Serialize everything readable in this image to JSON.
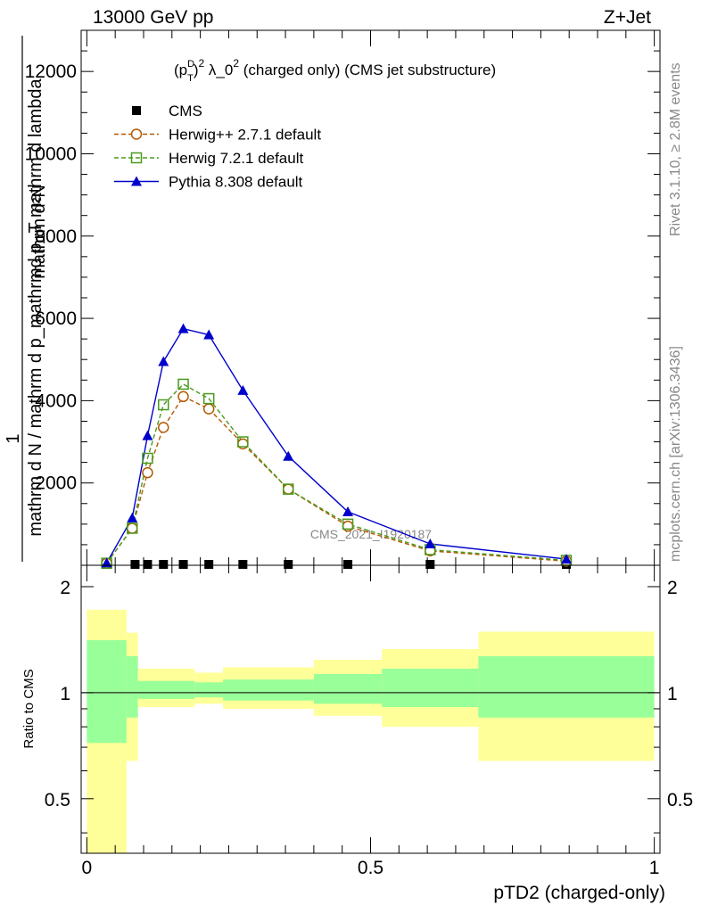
{
  "header": {
    "left": "13000 GeV pp",
    "right": "Z+Jet"
  },
  "side_labels": {
    "rivet": "Rivet 3.1.10, ≥ 2.8M events",
    "mcplots": "mcplots.cern.ch [arXiv:1306.3436]"
  },
  "chart_data": [
    {
      "type": "line",
      "title_parts": {
        "pre": "(p",
        "sup1": "D",
        "sub1": "T",
        "mid": ")",
        "sup2": "2",
        "lambda": " λ_0",
        "sup3": "2",
        "rest": " (charged only) (CMS jet substructure)"
      },
      "watermark": "CMS_2021_I1920187",
      "ylabel_parts": {
        "num": "1",
        "top": "mathrm d²N",
        "lower": "mathrm d N / mathrm d p_mathrmd p_T mathrm d lambda"
      },
      "ylim": [
        0,
        13000
      ],
      "xlim": [
        -0.01,
        1.01
      ],
      "yticks": [
        {
          "v": 2000,
          "label": "2000"
        },
        {
          "v": 4000,
          "label": "4000"
        },
        {
          "v": 6000,
          "label": "6000"
        },
        {
          "v": 8000,
          "label": "8000"
        },
        {
          "v": 10000,
          "label": "10000"
        },
        {
          "v": 12000,
          "label": "12000"
        }
      ],
      "legend": [
        {
          "label": "CMS",
          "marker": "square-filled",
          "color": "#000000"
        },
        {
          "label": "Herwig++ 2.7.1 default",
          "marker": "circle-open",
          "color": "#b35900",
          "dash": true
        },
        {
          "label": "Herwig 7.2.1 default",
          "marker": "square-open",
          "color": "#4a9a1e",
          "dash": true
        },
        {
          "label": "Pythia 8.308 default",
          "marker": "triangle-filled",
          "color": "#0000cc",
          "dash": false
        }
      ],
      "series": [
        {
          "name": "CMS",
          "x": [
            0.035,
            0.085,
            0.107,
            0.135,
            0.17,
            0.215,
            0.275,
            0.355,
            0.46,
            0.605,
            0.845
          ],
          "y": [
            0,
            0,
            0,
            0,
            0,
            0,
            0,
            0,
            0,
            0,
            0
          ]
        },
        {
          "name": "Herwig++ 2.7.1 default",
          "x": [
            0.035,
            0.08,
            0.107,
            0.135,
            0.17,
            0.215,
            0.275,
            0.355,
            0.46,
            0.605,
            0.845
          ],
          "y": [
            50,
            900,
            2250,
            3350,
            4100,
            3800,
            2950,
            1850,
            950,
            350,
            100
          ]
        },
        {
          "name": "Herwig 7.2.1 default",
          "x": [
            0.035,
            0.08,
            0.107,
            0.135,
            0.17,
            0.215,
            0.275,
            0.355,
            0.46,
            0.605,
            0.845
          ],
          "y": [
            50,
            900,
            2600,
            3900,
            4400,
            4050,
            3000,
            1850,
            1000,
            380,
            120
          ]
        },
        {
          "name": "Pythia 8.308 default",
          "x": [
            0.035,
            0.08,
            0.107,
            0.135,
            0.17,
            0.215,
            0.275,
            0.355,
            0.46,
            0.605,
            0.845
          ],
          "y": [
            60,
            1150,
            3150,
            4950,
            5750,
            5600,
            4250,
            2650,
            1300,
            520,
            150
          ]
        }
      ]
    },
    {
      "type": "area",
      "ylabel": "Ratio to CMS",
      "xlabel": "pTD2 (charged-only)",
      "ylim": [
        0.35,
        2.3
      ],
      "xlim": [
        -0.01,
        1.01
      ],
      "xticks": [
        {
          "v": 0,
          "label": "0"
        },
        {
          "v": 0.5,
          "label": "0.5"
        },
        {
          "v": 1,
          "label": "1"
        }
      ],
      "yticks": [
        {
          "v": 0.5,
          "label": "0.5"
        },
        {
          "v": 1,
          "label": "1"
        },
        {
          "v": 2,
          "label": "2"
        }
      ],
      "bands": [
        {
          "x0": 0.0,
          "x1": 0.07,
          "y_lo": 0.35,
          "y_hi": 1.72,
          "g_lo": 0.72,
          "g_hi": 1.41
        },
        {
          "x0": 0.07,
          "x1": 0.09,
          "y_lo": 0.64,
          "y_hi": 1.48,
          "g_lo": 0.85,
          "g_hi": 1.27
        },
        {
          "x0": 0.09,
          "x1": 0.19,
          "y_lo": 0.91,
          "y_hi": 1.17,
          "g_lo": 0.96,
          "g_hi": 1.08
        },
        {
          "x0": 0.19,
          "x1": 0.24,
          "y_lo": 0.93,
          "y_hi": 1.14,
          "g_lo": 0.97,
          "g_hi": 1.07
        },
        {
          "x0": 0.24,
          "x1": 0.4,
          "y_lo": 0.9,
          "y_hi": 1.18,
          "g_lo": 0.95,
          "g_hi": 1.09
        },
        {
          "x0": 0.4,
          "x1": 0.52,
          "y_lo": 0.86,
          "y_hi": 1.24,
          "g_lo": 0.93,
          "g_hi": 1.13
        },
        {
          "x0": 0.52,
          "x1": 0.69,
          "y_lo": 0.8,
          "y_hi": 1.33,
          "g_lo": 0.91,
          "g_hi": 1.17
        },
        {
          "x0": 0.69,
          "x1": 1.0,
          "y_lo": 0.64,
          "y_hi": 1.49,
          "g_lo": 0.85,
          "g_hi": 1.27
        }
      ],
      "colors": {
        "outer": "#ffff99",
        "inner": "#99ff99"
      }
    }
  ]
}
